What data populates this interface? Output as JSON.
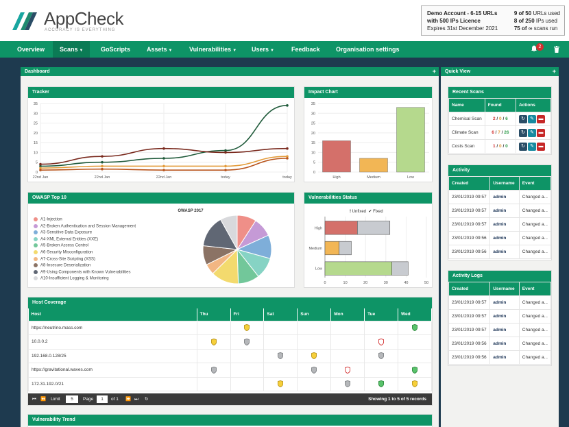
{
  "brand": {
    "name": "AppCheck",
    "tagline": "ACCURACY IS EVERYTHING"
  },
  "account": {
    "line1": "Demo Account - 6-15 URLs",
    "line2": "with 500 IPs Licence",
    "line3": "Expires 31st December 2021",
    "urls": {
      "num": "9 of 50",
      "label": " URLs used"
    },
    "ips": {
      "num": "8 of 250",
      "label": " IPs used"
    },
    "scans": {
      "num": "75 of ∞",
      "label": " scans run"
    }
  },
  "nav": {
    "items": [
      "Overview",
      "Scans",
      "GoScripts",
      "Assets",
      "Vulnerabilities",
      "Users",
      "Feedback",
      "Organisation settings"
    ],
    "notif_count": "2"
  },
  "panels": {
    "dashboard": "Dashboard",
    "quick_view": "Quick View",
    "plus": "+"
  },
  "tracker": {
    "title": "Tracker",
    "chart_data": {
      "type": "line",
      "x": [
        "22nd Jan",
        "22nd Jan",
        "22nd Jan",
        "today",
        "today"
      ],
      "ylim": [
        0,
        35
      ],
      "yticks": [
        "0",
        "5",
        "10",
        "15",
        "20",
        "25",
        "30",
        "35"
      ],
      "series": [
        {
          "color": "#1f5a3a",
          "values": [
            3,
            5,
            7,
            11,
            34
          ]
        },
        {
          "color": "#7a2a1e",
          "values": [
            4,
            8,
            12,
            10,
            12
          ]
        },
        {
          "color": "#e39b3a",
          "values": [
            2,
            3,
            3,
            3,
            8
          ]
        },
        {
          "color": "#b8541c",
          "values": [
            1,
            1.5,
            1,
            1,
            7
          ]
        }
      ]
    }
  },
  "impact": {
    "title": "Impact Chart",
    "chart_data": {
      "type": "bar",
      "categories": [
        "High",
        "Medium",
        "Low"
      ],
      "values": [
        16,
        7,
        33
      ],
      "colors": [
        "#d4706a",
        "#f2b655",
        "#b5d98d"
      ],
      "ylim": [
        0,
        35
      ],
      "yticks": [
        "0",
        "5",
        "10",
        "15",
        "20",
        "25",
        "30",
        "35"
      ]
    }
  },
  "owasp": {
    "title": "OWASP Top 10",
    "chart_data": {
      "type": "pie",
      "title": "OWASP 2017",
      "labels": [
        "A1-Injection",
        "A2-Broken Authentication and Session Management",
        "A3-Sensitive Data Exposure",
        "A4-XML External Entities (XXE)",
        "A5-Broken Access Control",
        "A6-Security Misconfiguration",
        "A7-Cross-Site Scripting (XSS)",
        "A8-Insecure Deserialization",
        "A9-Using Components with Known Vulnerabilities",
        "A10-Insufficient Logging & Monitoring"
      ],
      "values": [
        9,
        9,
        11,
        10,
        10,
        13,
        5,
        9,
        15,
        8
      ],
      "colors": [
        "#ef8f88",
        "#c59ad6",
        "#7eaed9",
        "#86d3c4",
        "#72c79a",
        "#f3da6e",
        "#f2b683",
        "#8b7365",
        "#606774",
        "#d8d9dc"
      ]
    }
  },
  "vuln_status": {
    "title": "Vulnerabilities Status",
    "legend": {
      "unfixed": "Unfixed",
      "fixed": "Fixed"
    },
    "chart_data": {
      "type": "bar",
      "orientation": "horizontal",
      "categories": [
        "High",
        "Medium",
        "Low"
      ],
      "series": [
        {
          "name": "Unfixed",
          "values": [
            16,
            7,
            33
          ]
        },
        {
          "name": "Fixed",
          "values": [
            16,
            6,
            8
          ]
        }
      ],
      "colors": [
        "#d4706a",
        "#f2b655",
        "#b5d98d"
      ],
      "fixed_color": "#c8cbd0",
      "xlim": [
        0,
        50
      ],
      "xticks": [
        "0",
        "10",
        "20",
        "30",
        "40",
        "50"
      ]
    }
  },
  "host_coverage": {
    "title": "Host Coverage",
    "columns": [
      "Host",
      "Thu",
      "Fri",
      "Sat",
      "Sun",
      "Mon",
      "Tue",
      "Wed"
    ],
    "rows": [
      {
        "host": "https://neutrino.mass.com",
        "marks": [
          "",
          "y",
          "",
          "",
          "",
          "",
          "g"
        ]
      },
      {
        "host": "10.0.0.2",
        "marks": [
          "y",
          "s",
          "",
          "",
          "",
          "r",
          ""
        ]
      },
      {
        "host": "192.168.0.128/25",
        "marks": [
          "",
          "",
          "s",
          "y",
          "",
          "s",
          ""
        ]
      },
      {
        "host": "https://gravitational.waves.com",
        "marks": [
          "s",
          "",
          "",
          "s",
          "r",
          "",
          "g"
        ]
      },
      {
        "host": "172.31.192.0/21",
        "marks": [
          "",
          "",
          "y",
          "",
          "s",
          "g",
          "y"
        ]
      }
    ],
    "pager": {
      "limit_label": "Limit",
      "limit": "5",
      "page_label": "Page",
      "page": "1",
      "of": "of 1",
      "showing": "Showing 1 to 5 of 5 records"
    }
  },
  "vuln_trend": {
    "title": "Vulnerability Trend"
  },
  "recent_scans": {
    "title": "Recent Scans",
    "headers": [
      "Name",
      "Found",
      "Actions"
    ],
    "rows": [
      {
        "name": "Chemical Scan",
        "h": "2",
        "m": "0",
        "l": "6"
      },
      {
        "name": "Climate Scan",
        "h": "6",
        "m": "7",
        "l": "26"
      },
      {
        "name": "Costs Scan",
        "h": "1",
        "m": "0",
        "l": "0"
      }
    ]
  },
  "activity": {
    "title": "Activity",
    "headers": [
      "Created",
      "Username",
      "Event"
    ],
    "rows": [
      {
        "created": "23/01/2019 09:57",
        "user": "admin",
        "event": "Changed a..."
      },
      {
        "created": "23/01/2019 09:57",
        "user": "admin",
        "event": "Changed a..."
      },
      {
        "created": "23/01/2019 09:57",
        "user": "admin",
        "event": "Changed a..."
      },
      {
        "created": "23/01/2019 09:56",
        "user": "admin",
        "event": "Changed a..."
      },
      {
        "created": "23/01/2019 09:56",
        "user": "admin",
        "event": "Changed a..."
      }
    ]
  },
  "activity_logs": {
    "title": "Activity Logs",
    "headers": [
      "Created",
      "Username",
      "Event"
    ],
    "rows": [
      {
        "created": "23/01/2019 09:57",
        "user": "admin",
        "event": "Changed a..."
      },
      {
        "created": "23/01/2019 09:57",
        "user": "admin",
        "event": "Changed a..."
      },
      {
        "created": "23/01/2019 09:57",
        "user": "admin",
        "event": "Changed a..."
      },
      {
        "created": "23/01/2019 09:56",
        "user": "admin",
        "event": "Changed a..."
      },
      {
        "created": "23/01/2019 09:56",
        "user": "admin",
        "event": "Changed a..."
      }
    ]
  },
  "colors": {
    "brand_green": "#0e9466",
    "nav_active": "#0b7b55",
    "dark_bg": "#1e3a4f",
    "high": "#d32f2f",
    "medium": "#e39b3a",
    "low": "#2e9c4a"
  }
}
